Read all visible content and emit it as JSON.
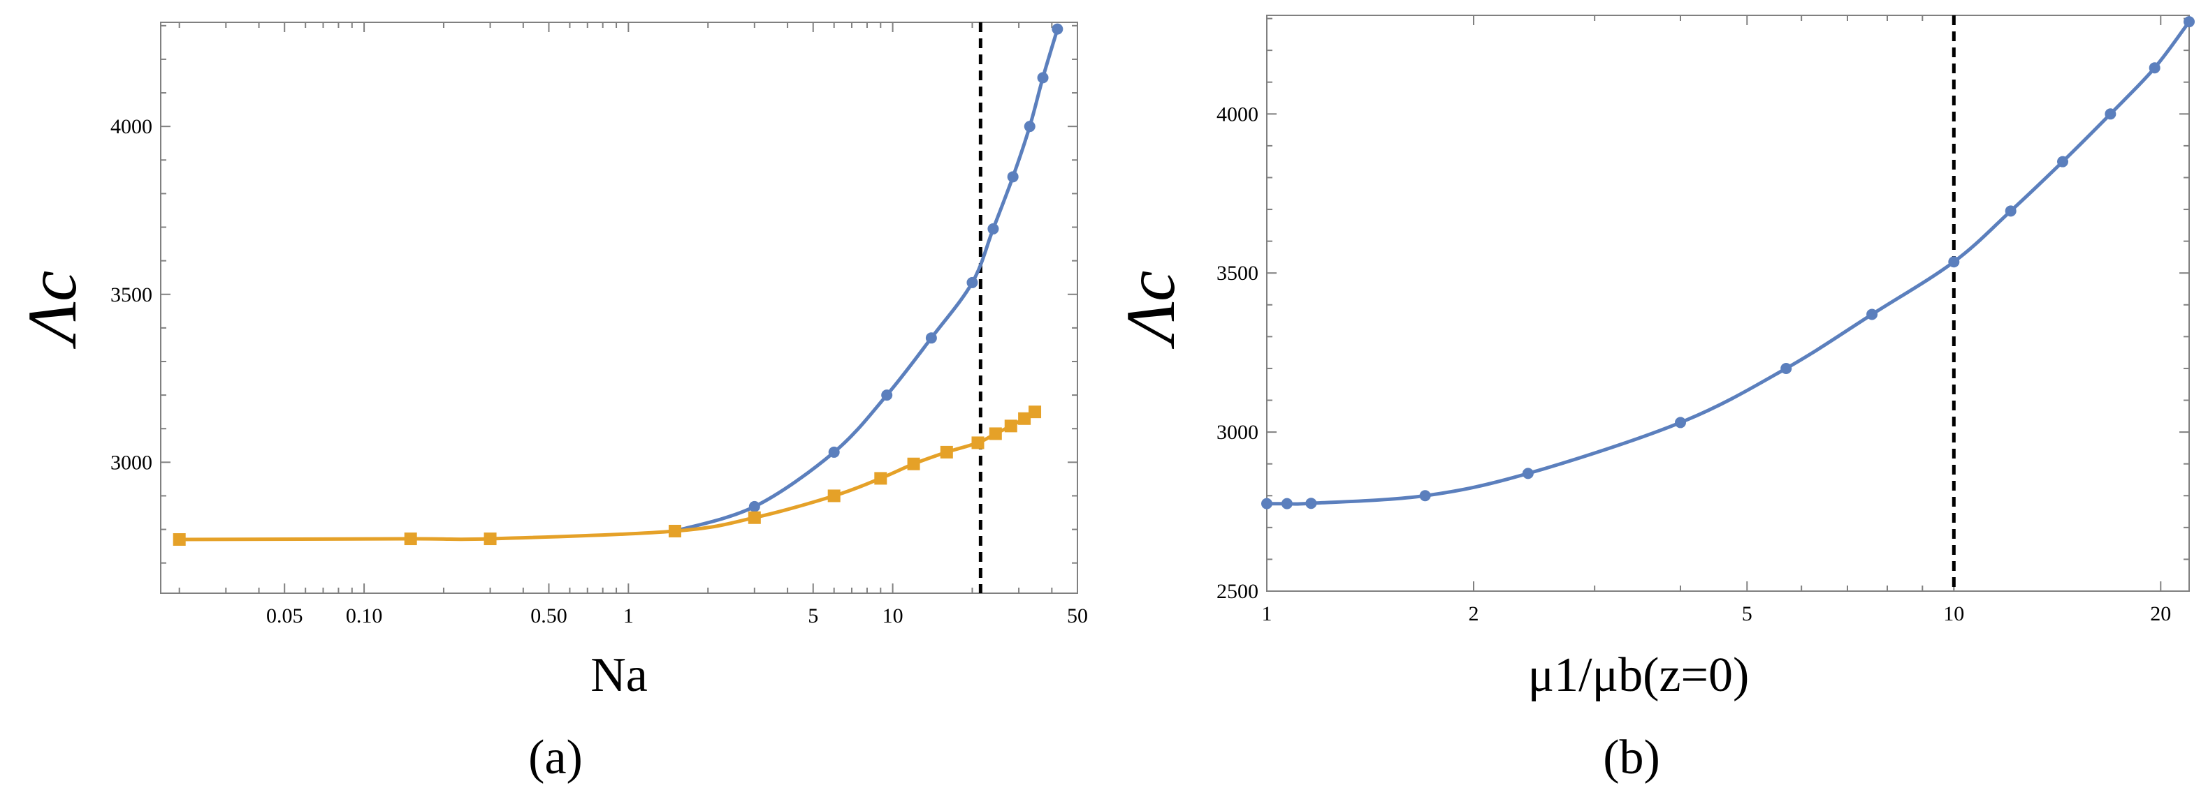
{
  "chart_data": [
    {
      "type": "line",
      "panel_label": "(a)",
      "xlabel": "Na",
      "ylabel": "Λc",
      "x_scale": "log",
      "xlim": [
        0.017,
        50
      ],
      "ylim": [
        2610,
        4310
      ],
      "x_ticks": [
        0.05,
        0.1,
        0.5,
        1,
        5,
        10,
        50
      ],
      "x_tick_labels": [
        "0.05",
        "0.10",
        "0.50",
        "1",
        "5",
        "10",
        "50"
      ],
      "y_ticks": [
        3000,
        3500,
        4000
      ],
      "y_tick_labels": [
        "3000",
        "3500",
        "4000"
      ],
      "vline_x": 21.5,
      "series": [
        {
          "color": "#5b7fbd",
          "marker": "circle",
          "x": [
            1.5,
            3.0,
            6.0,
            9.5,
            14.0,
            20.0,
            24.0,
            28.5,
            33.0,
            37.0,
            42.0
          ],
          "y": [
            2795,
            2868,
            3030,
            3200,
            3370,
            3535,
            3695,
            3850,
            4000,
            4145,
            4290
          ]
        },
        {
          "color": "#e5a128",
          "marker": "square",
          "x": [
            0.02,
            0.15,
            0.3,
            1.5,
            3.0,
            6.0,
            9.0,
            12.0,
            16.0,
            21.0,
            24.5,
            28.0,
            31.5,
            34.5
          ],
          "y": [
            2770,
            2772,
            2772,
            2795,
            2835,
            2900,
            2952,
            2995,
            3030,
            3058,
            3085,
            3108,
            3130,
            3150
          ]
        }
      ]
    },
    {
      "type": "line",
      "panel_label": "(b)",
      "xlabel": "μ1/μb(z=0)",
      "ylabel": "Λc",
      "x_scale": "log",
      "xlim": [
        1,
        22
      ],
      "ylim": [
        2500,
        4310
      ],
      "x_ticks": [
        1,
        2,
        5,
        10,
        20
      ],
      "x_tick_labels": [
        "1",
        "2",
        "5",
        "10",
        "20"
      ],
      "y_ticks": [
        2500,
        3000,
        3500,
        4000
      ],
      "y_tick_labels": [
        "2500",
        "3000",
        "3500",
        "4000"
      ],
      "vline_x": 10,
      "series": [
        {
          "color": "#5b7fbd",
          "marker": "circle",
          "x": [
            1.0,
            1.07,
            1.16,
            1.7,
            2.4,
            4.0,
            5.7,
            7.6,
            10.0,
            12.1,
            14.4,
            16.9,
            19.6,
            22.0
          ],
          "y": [
            2775,
            2775,
            2776,
            2800,
            2870,
            3030,
            3200,
            3370,
            3535,
            3695,
            3850,
            4000,
            4145,
            4290
          ]
        }
      ]
    }
  ]
}
